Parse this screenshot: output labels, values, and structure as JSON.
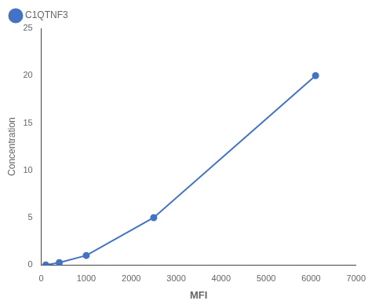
{
  "chart_data": {
    "type": "line",
    "x": [
      100,
      400,
      1000,
      2500,
      6100
    ],
    "series": [
      {
        "name": "C1QTNF3",
        "color": "#4472C4",
        "values": [
          0,
          0.25,
          1.0,
          5.0,
          20.0
        ],
        "marker": "o"
      }
    ],
    "xlabel": "MFI",
    "ylabel": "Concentration",
    "xlim": [
      0,
      7000
    ],
    "ylim": [
      0,
      25
    ],
    "xticks": [
      0,
      1000,
      2000,
      3000,
      4000,
      5000,
      6000,
      7000
    ],
    "yticks": [
      0,
      5,
      10,
      15,
      20,
      25
    ],
    "grid": false,
    "legend": "upper left"
  }
}
